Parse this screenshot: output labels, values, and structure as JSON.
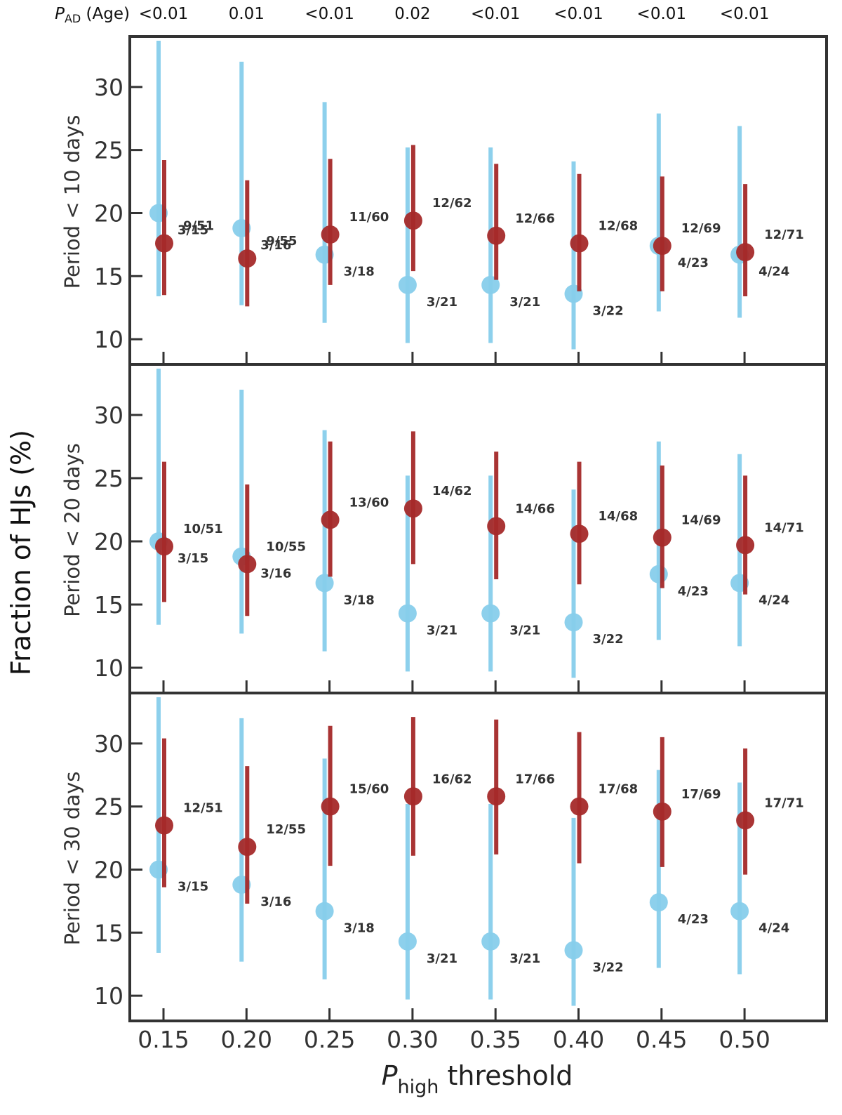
{
  "chart_data": {
    "type": "scatter",
    "ylabel": "Fraction of HJs (%)",
    "xlabel": {
      "p": "P",
      "sub": "high",
      "rest": " threshold"
    },
    "top_header": {
      "p": "P",
      "sub": "AD",
      "rest": " (Age)"
    },
    "p_ad_values": [
      "<0.01",
      "0.01",
      "<0.01",
      "0.02",
      "<0.01",
      "<0.01",
      "<0.01",
      "<0.01"
    ],
    "categories": [
      "0.15",
      "0.20",
      "0.25",
      "0.30",
      "0.35",
      "0.40",
      "0.45",
      "0.50"
    ],
    "ylim": [
      8,
      34
    ],
    "yticks": [
      "10",
      "15",
      "20",
      "25",
      "30"
    ],
    "colors": {
      "blue": "#87ceeb",
      "red": "#a52a2a",
      "frame": "#333333"
    },
    "panels": [
      {
        "ylabel": "Period < 10 days",
        "series": [
          {
            "name": "blue",
            "values": [
              20.0,
              18.8,
              16.7,
              14.3,
              14.3,
              13.6,
              17.4,
              16.7
            ],
            "err_low": [
              13.4,
              12.7,
              11.3,
              9.7,
              9.7,
              9.2,
              12.2,
              11.7
            ],
            "err_high": [
              33.7,
              32.0,
              28.8,
              25.2,
              25.2,
              24.1,
              27.9,
              26.9
            ],
            "labels": [
              "3/15",
              "3/16",
              "3/18",
              "3/21",
              "3/21",
              "3/22",
              "4/23",
              "4/24"
            ]
          },
          {
            "name": "red",
            "values": [
              17.6,
              16.4,
              18.3,
              19.4,
              18.2,
              17.6,
              17.4,
              16.9
            ],
            "err_low": [
              13.5,
              12.6,
              14.3,
              15.4,
              14.7,
              13.8,
              13.8,
              13.4
            ],
            "err_high": [
              24.2,
              22.6,
              24.3,
              25.4,
              23.9,
              23.1,
              22.9,
              22.3
            ],
            "labels": [
              "9/51",
              "9/55",
              "11/60",
              "12/62",
              "12/66",
              "12/68",
              "12/69",
              "12/71"
            ]
          }
        ]
      },
      {
        "ylabel": "Period < 20 days",
        "series": [
          {
            "name": "blue",
            "values": [
              20.0,
              18.8,
              16.7,
              14.3,
              14.3,
              13.6,
              17.4,
              16.7
            ],
            "err_low": [
              13.4,
              12.7,
              11.3,
              9.7,
              9.7,
              9.2,
              12.2,
              11.7
            ],
            "err_high": [
              33.7,
              32.0,
              28.8,
              25.2,
              25.2,
              24.1,
              27.9,
              26.9
            ],
            "labels": [
              "3/15",
              "3/16",
              "3/18",
              "3/21",
              "3/21",
              "3/22",
              "4/23",
              "4/24"
            ]
          },
          {
            "name": "red",
            "values": [
              19.6,
              18.2,
              21.7,
              22.6,
              21.2,
              20.6,
              20.3,
              19.7
            ],
            "err_low": [
              15.2,
              14.1,
              17.2,
              18.2,
              17.0,
              16.6,
              16.3,
              15.8
            ],
            "err_high": [
              26.3,
              24.5,
              27.9,
              28.7,
              27.1,
              26.3,
              26.0,
              25.2
            ],
            "labels": [
              "10/51",
              "10/55",
              "13/60",
              "14/62",
              "14/66",
              "14/68",
              "14/69",
              "14/71"
            ]
          }
        ]
      },
      {
        "ylabel": "Period < 30 days",
        "series": [
          {
            "name": "blue",
            "values": [
              20.0,
              18.8,
              16.7,
              14.3,
              14.3,
              13.6,
              17.4,
              16.7
            ],
            "err_low": [
              13.4,
              12.7,
              11.3,
              9.7,
              9.7,
              9.2,
              12.2,
              11.7
            ],
            "err_high": [
              33.7,
              32.0,
              28.8,
              25.2,
              25.2,
              24.1,
              27.9,
              26.9
            ],
            "labels": [
              "3/15",
              "3/16",
              "3/18",
              "3/21",
              "3/21",
              "3/22",
              "4/23",
              "4/24"
            ]
          },
          {
            "name": "red",
            "values": [
              23.5,
              21.8,
              25.0,
              25.8,
              25.8,
              25.0,
              24.6,
              23.9
            ],
            "err_low": [
              18.6,
              17.3,
              20.3,
              21.1,
              21.2,
              20.5,
              20.2,
              19.6
            ],
            "err_high": [
              30.4,
              28.2,
              31.4,
              32.1,
              31.9,
              30.9,
              30.5,
              29.6
            ],
            "labels": [
              "12/51",
              "12/55",
              "15/60",
              "16/62",
              "17/66",
              "17/68",
              "17/69",
              "17/71"
            ]
          }
        ]
      }
    ]
  }
}
